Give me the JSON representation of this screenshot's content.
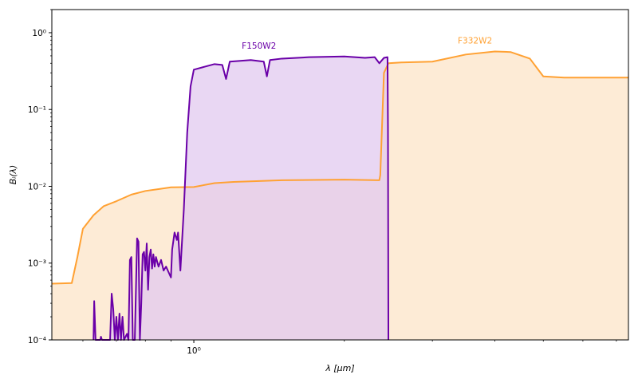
{
  "chart_data": {
    "type": "area",
    "title": "",
    "xlabel": "λ [μm]",
    "ylabel": "Bᵢ(λ)",
    "xscale": "log",
    "yscale": "log",
    "xlim": [
      0.52,
      7.4
    ],
    "ylim": [
      0.0001,
      2.0
    ],
    "x_ticks": [
      {
        "value": 1.0,
        "label": "10⁰"
      }
    ],
    "y_ticks": [
      {
        "value": 0.0001,
        "label": "10⁻⁴"
      },
      {
        "value": 0.001,
        "label": "10⁻³"
      },
      {
        "value": 0.01,
        "label": "10⁻²"
      },
      {
        "value": 0.1,
        "label": "10⁻¹"
      },
      {
        "value": 1.0,
        "label": "10⁰"
      }
    ],
    "grid": false,
    "legend": "none",
    "series": [
      {
        "name": "F332W2",
        "line_color": "#ffa133",
        "fill_color": "#fdebd6",
        "label_position": [
          3.65,
          0.72
        ],
        "points": [
          [
            0.52,
            0.00054
          ],
          [
            0.57,
            0.00055
          ],
          [
            0.585,
            0.0012
          ],
          [
            0.6,
            0.0028
          ],
          [
            0.63,
            0.0042
          ],
          [
            0.66,
            0.0055
          ],
          [
            0.7,
            0.0064
          ],
          [
            0.75,
            0.0078
          ],
          [
            0.8,
            0.0087
          ],
          [
            0.85,
            0.0092
          ],
          [
            0.9,
            0.0097
          ],
          [
            1.0,
            0.0098
          ],
          [
            1.1,
            0.011
          ],
          [
            1.2,
            0.0114
          ],
          [
            1.3,
            0.0116
          ],
          [
            1.5,
            0.012
          ],
          [
            2.0,
            0.0122
          ],
          [
            2.35,
            0.012
          ],
          [
            2.36,
            0.014
          ],
          [
            2.4,
            0.3
          ],
          [
            2.45,
            0.4
          ],
          [
            2.6,
            0.41
          ],
          [
            3.0,
            0.42
          ],
          [
            3.5,
            0.52
          ],
          [
            4.0,
            0.57
          ],
          [
            4.3,
            0.56
          ],
          [
            4.7,
            0.46
          ],
          [
            5.0,
            0.27
          ],
          [
            5.5,
            0.26
          ],
          [
            7.4,
            0.26
          ]
        ]
      },
      {
        "name": "F150W2",
        "line_color": "#6a00a8",
        "fill_color": "#e2caef",
        "label_position": [
          1.35,
          0.62
        ],
        "points": [
          [
            0.63,
            0.0001
          ],
          [
            0.632,
            0.00032
          ],
          [
            0.636,
            0.0001
          ],
          [
            0.65,
            0.0001
          ],
          [
            0.652,
            0.00011
          ],
          [
            0.655,
            0.0001
          ],
          [
            0.68,
            0.0001
          ],
          [
            0.685,
            0.0004
          ],
          [
            0.69,
            0.00025
          ],
          [
            0.695,
            0.0001
          ],
          [
            0.7,
            0.0002
          ],
          [
            0.705,
            0.0001
          ],
          [
            0.71,
            0.00022
          ],
          [
            0.715,
            0.0001
          ],
          [
            0.72,
            0.0002
          ],
          [
            0.725,
            0.0001
          ],
          [
            0.735,
            0.00012
          ],
          [
            0.74,
            0.0001
          ],
          [
            0.745,
            0.0011
          ],
          [
            0.75,
            0.0012
          ],
          [
            0.755,
            0.0001
          ],
          [
            0.762,
            0.0001
          ],
          [
            0.77,
            0.0021
          ],
          [
            0.775,
            0.0019
          ],
          [
            0.78,
            0.0001
          ],
          [
            0.785,
            0.0003
          ],
          [
            0.79,
            0.0013
          ],
          [
            0.795,
            0.0014
          ],
          [
            0.8,
            0.0008
          ],
          [
            0.805,
            0.0018
          ],
          [
            0.81,
            0.00045
          ],
          [
            0.815,
            0.0012
          ],
          [
            0.82,
            0.0015
          ],
          [
            0.825,
            0.00085
          ],
          [
            0.83,
            0.0013
          ],
          [
            0.835,
            0.0009
          ],
          [
            0.84,
            0.0012
          ],
          [
            0.85,
            0.0009
          ],
          [
            0.86,
            0.0011
          ],
          [
            0.87,
            0.0008
          ],
          [
            0.88,
            0.0009
          ],
          [
            0.9,
            0.00065
          ],
          [
            0.905,
            0.0015
          ],
          [
            0.915,
            0.0025
          ],
          [
            0.925,
            0.002
          ],
          [
            0.93,
            0.0025
          ],
          [
            0.94,
            0.0008
          ],
          [
            0.955,
            0.005
          ],
          [
            0.97,
            0.05
          ],
          [
            0.985,
            0.2
          ],
          [
            1.0,
            0.33
          ],
          [
            1.05,
            0.36
          ],
          [
            1.1,
            0.39
          ],
          [
            1.14,
            0.38
          ],
          [
            1.16,
            0.25
          ],
          [
            1.18,
            0.42
          ],
          [
            1.3,
            0.44
          ],
          [
            1.38,
            0.42
          ],
          [
            1.4,
            0.27
          ],
          [
            1.42,
            0.44
          ],
          [
            1.5,
            0.46
          ],
          [
            1.7,
            0.48
          ],
          [
            2.0,
            0.49
          ],
          [
            2.2,
            0.47
          ],
          [
            2.3,
            0.48
          ],
          [
            2.35,
            0.4
          ],
          [
            2.4,
            0.47
          ],
          [
            2.44,
            0.48
          ],
          [
            2.445,
            0.06
          ],
          [
            2.45,
            0.0001
          ]
        ]
      }
    ]
  }
}
